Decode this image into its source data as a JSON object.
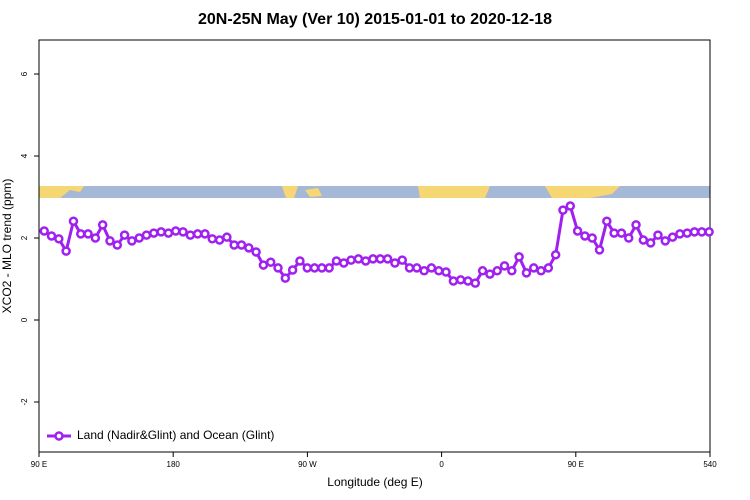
{
  "chart_data": {
    "type": "line",
    "title": "20N-25N May (Ver 10)   2015-01-01 to 2020-12-18",
    "x_label": "Longitude (deg E)",
    "y_label": "XCO2 - MLO trend (ppm)",
    "x": [
      93.5,
      98.4,
      103.3,
      108.2,
      113.1,
      118,
      122.9,
      127.8,
      132.7,
      137.6,
      142.5,
      147.4,
      152.3,
      157.2,
      162.1,
      167,
      171.9,
      176.8,
      181.7,
      186.6,
      191.5,
      196.4,
      201.3,
      206.2,
      211.1,
      216,
      220.9,
      225.8,
      230.7,
      235.6,
      240.5,
      245.4,
      250.3,
      255.2,
      260.1,
      265,
      269.9,
      274.8,
      279.7,
      284.6,
      289.5,
      294.4,
      299.3,
      304.2,
      309.1,
      314,
      318.9,
      323.8,
      328.7,
      333.6,
      338.5,
      343.4,
      348.3,
      353.2,
      358.1,
      363,
      367.9,
      372.8,
      377.7,
      382.6,
      387.5,
      392.4,
      397.3,
      402.2,
      407.1,
      412,
      416.9,
      421.8,
      426.7,
      431.6,
      436.5,
      441.4,
      446.3,
      451.2,
      456.1,
      461,
      465.9,
      470.8,
      475.7,
      480.6,
      485.5,
      490.4,
      495.3,
      500.2,
      505.1,
      510,
      514.9,
      519.8,
      524.7,
      529.6,
      534.5,
      539.4
    ],
    "series": [
      {
        "name": "Land (Nadir&Glint) and Ocean (Glint)",
        "color": "#a020f0",
        "values": [
          2.17,
          2.05,
          1.98,
          1.68,
          2.41,
          2.1,
          2.1,
          2.0,
          2.32,
          1.93,
          1.83,
          2.07,
          1.93,
          2.0,
          2.07,
          2.12,
          2.15,
          2.12,
          2.17,
          2.15,
          2.07,
          2.1,
          2.1,
          1.98,
          1.95,
          2.02,
          1.83,
          1.83,
          1.76,
          1.66,
          1.34,
          1.41,
          1.27,
          1.02,
          1.22,
          1.44,
          1.27,
          1.27,
          1.27,
          1.27,
          1.44,
          1.39,
          1.46,
          1.49,
          1.44,
          1.49,
          1.49,
          1.49,
          1.39,
          1.46,
          1.27,
          1.27,
          1.2,
          1.27,
          1.2,
          1.17,
          0.95,
          0.98,
          0.95,
          0.9,
          1.2,
          1.12,
          1.2,
          1.32,
          1.2,
          1.54,
          1.15,
          1.27,
          1.2,
          1.27,
          1.59,
          2.68,
          2.78,
          2.17,
          2.05,
          2.0,
          1.71,
          2.41,
          2.12,
          2.12,
          2.0,
          2.32,
          1.95,
          1.88,
          2.07,
          1.93,
          2.02,
          2.1,
          2.12,
          2.15,
          2.15,
          2.15
        ]
      }
    ],
    "xlim": [
      90,
      540
    ],
    "xticks": [
      {
        "value": 90,
        "label": "90 E"
      },
      180,
      {
        "value": 270,
        "label": "90 W"
      },
      {
        "value": 360,
        "label": "0"
      },
      {
        "value": 450,
        "label": "90 E"
      },
      540
    ],
    "ylim": [
      -3.22,
      6.83
    ],
    "yticks": [
      -2,
      0,
      2,
      4,
      6
    ],
    "legend": "lower left",
    "grid": false
  }
}
